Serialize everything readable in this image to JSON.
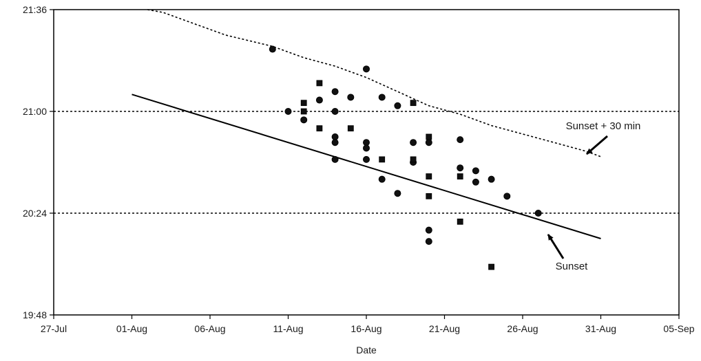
{
  "chart_data": {
    "type": "scatter",
    "title": "",
    "xlabel": "Date",
    "ylabel": "",
    "x_ticks": [
      "27-Jul",
      "01-Aug",
      "06-Aug",
      "11-Aug",
      "16-Aug",
      "21-Aug",
      "26-Aug",
      "31-Aug",
      "05-Sep"
    ],
    "y_ticks": [
      "19:48",
      "20:24",
      "21:00",
      "21:36"
    ],
    "xlim": [
      "2024-07-27",
      "2024-09-05"
    ],
    "ylim": [
      "19:48",
      "21:36"
    ],
    "grid": {
      "y_dotted_at": [
        "20:24",
        "21:00"
      ]
    },
    "lines": [
      {
        "name": "Sunset",
        "style": "solid",
        "points": [
          [
            "2024-08-01",
            "21:06"
          ],
          [
            "2024-08-31",
            "20:15"
          ]
        ]
      },
      {
        "name": "Sunset + 30 min",
        "style": "dotted",
        "points": [
          [
            "2024-08-02",
            "21:36"
          ],
          [
            "2024-08-03",
            "21:35"
          ],
          [
            "2024-08-05",
            "21:31"
          ],
          [
            "2024-08-07",
            "21:27"
          ],
          [
            "2024-08-10",
            "21:23"
          ],
          [
            "2024-08-12",
            "21:19"
          ],
          [
            "2024-08-14",
            "21:16"
          ],
          [
            "2024-08-16",
            "21:12"
          ],
          [
            "2024-08-18",
            "21:07"
          ],
          [
            "2024-08-20",
            "21:02"
          ],
          [
            "2024-08-22",
            "20:59"
          ],
          [
            "2024-08-24",
            "20:55"
          ],
          [
            "2024-08-26",
            "20:52"
          ],
          [
            "2024-08-28",
            "20:49"
          ],
          [
            "2024-08-30",
            "20:46"
          ],
          [
            "2024-08-31",
            "20:44"
          ]
        ]
      }
    ],
    "series": [
      {
        "marker": "circle",
        "points": [
          [
            "2024-08-10",
            "21:22"
          ],
          [
            "2024-08-11",
            "21:00"
          ],
          [
            "2024-08-12",
            "20:57"
          ],
          [
            "2024-08-13",
            "21:04"
          ],
          [
            "2024-08-14",
            "21:07"
          ],
          [
            "2024-08-14",
            "21:00"
          ],
          [
            "2024-08-14",
            "20:51"
          ],
          [
            "2024-08-14",
            "20:49"
          ],
          [
            "2024-08-14",
            "20:43"
          ],
          [
            "2024-08-15",
            "21:05"
          ],
          [
            "2024-08-16",
            "21:15"
          ],
          [
            "2024-08-16",
            "20:49"
          ],
          [
            "2024-08-16",
            "20:47"
          ],
          [
            "2024-08-16",
            "20:43"
          ],
          [
            "2024-08-17",
            "21:05"
          ],
          [
            "2024-08-17",
            "20:36"
          ],
          [
            "2024-08-18",
            "21:02"
          ],
          [
            "2024-08-18",
            "20:31"
          ],
          [
            "2024-08-19",
            "20:49"
          ],
          [
            "2024-08-19",
            "20:42"
          ],
          [
            "2024-08-20",
            "20:49"
          ],
          [
            "2024-08-20",
            "20:18"
          ],
          [
            "2024-08-20",
            "20:14"
          ],
          [
            "2024-08-22",
            "20:50"
          ],
          [
            "2024-08-22",
            "20:40"
          ],
          [
            "2024-08-23",
            "20:39"
          ],
          [
            "2024-08-23",
            "20:35"
          ],
          [
            "2024-08-24",
            "20:36"
          ],
          [
            "2024-08-25",
            "20:30"
          ],
          [
            "2024-08-27",
            "20:24"
          ]
        ]
      },
      {
        "marker": "square",
        "points": [
          [
            "2024-08-12",
            "21:03"
          ],
          [
            "2024-08-12",
            "21:00"
          ],
          [
            "2024-08-13",
            "21:10"
          ],
          [
            "2024-08-13",
            "20:54"
          ],
          [
            "2024-08-15",
            "20:54"
          ],
          [
            "2024-08-17",
            "20:43"
          ],
          [
            "2024-08-19",
            "21:03"
          ],
          [
            "2024-08-19",
            "20:43"
          ],
          [
            "2024-08-20",
            "20:51"
          ],
          [
            "2024-08-20",
            "20:37"
          ],
          [
            "2024-08-20",
            "20:30"
          ],
          [
            "2024-08-22",
            "20:37"
          ],
          [
            "2024-08-22",
            "20:21"
          ],
          [
            "2024-08-24",
            "20:05"
          ]
        ]
      }
    ],
    "annotations": [
      {
        "text": "Sunset + 30 min",
        "points_to": "Sunset + 30 min"
      },
      {
        "text": "Sunset",
        "points_to": "Sunset"
      }
    ]
  }
}
